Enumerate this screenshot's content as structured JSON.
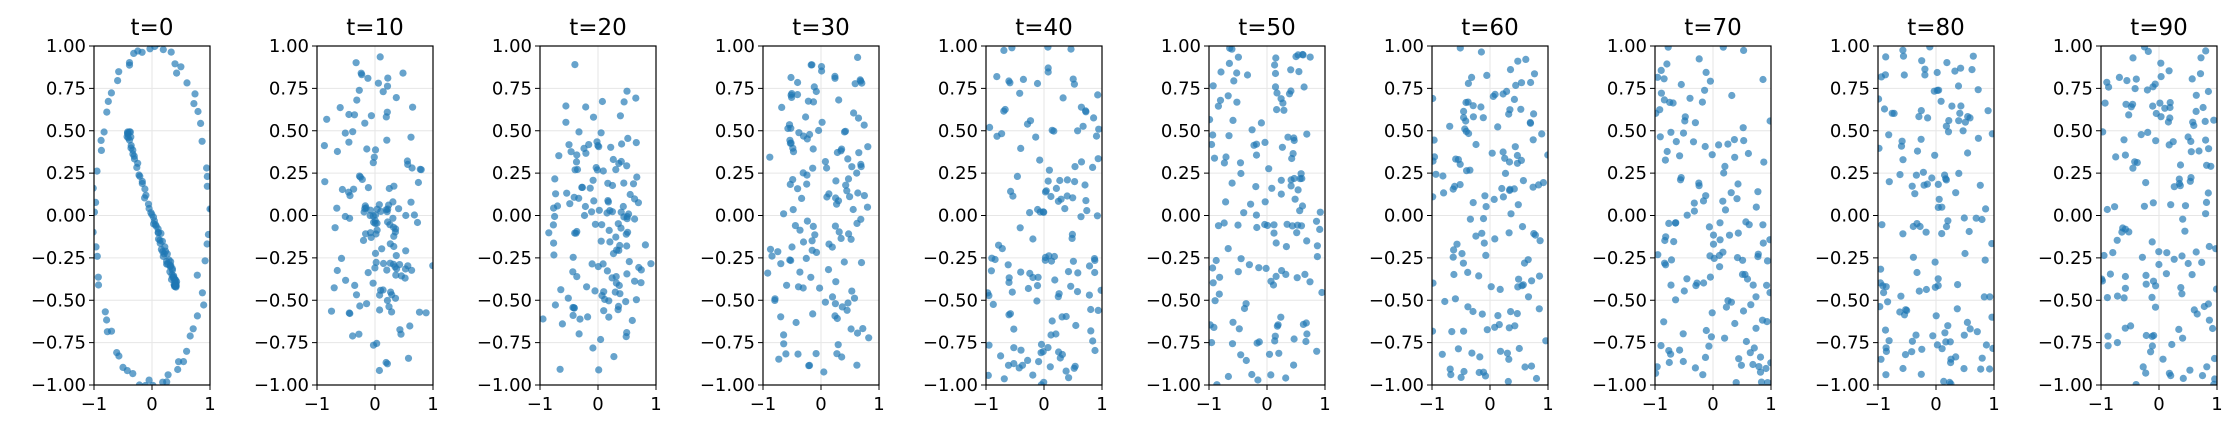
{
  "chart_data": [
    {
      "type": "scatter",
      "title": "t=0",
      "xlim": [
        -1,
        1
      ],
      "ylim": [
        -1,
        1
      ],
      "xticks": [
        -1,
        0,
        1
      ],
      "yticks": [
        -1.0,
        -0.75,
        -0.5,
        -0.25,
        0.0,
        0.25,
        0.5,
        0.75,
        1.0
      ],
      "grid": true,
      "color": "#1f77b4",
      "point_counts": {
        "inner_spiral": 80,
        "outer_ring": 70
      }
    },
    {
      "type": "scatter",
      "title": "t=10",
      "xlim": [
        -1,
        1
      ],
      "ylim": [
        -1,
        1
      ],
      "xticks": [
        -1,
        0,
        1
      ],
      "yticks": [
        -1.0,
        -0.75,
        -0.5,
        -0.25,
        0.0,
        0.25,
        0.5,
        0.75,
        1.0
      ],
      "grid": true,
      "color": "#1f77b4"
    },
    {
      "type": "scatter",
      "title": "t=20",
      "xlim": [
        -1,
        1
      ],
      "ylim": [
        -1,
        1
      ],
      "xticks": [
        -1,
        0,
        1
      ],
      "yticks": [
        -1.0,
        -0.75,
        -0.5,
        -0.25,
        0.0,
        0.25,
        0.5,
        0.75,
        1.0
      ],
      "grid": true,
      "color": "#1f77b4"
    },
    {
      "type": "scatter",
      "title": "t=30",
      "xlim": [
        -1,
        1
      ],
      "ylim": [
        -1,
        1
      ],
      "xticks": [
        -1,
        0,
        1
      ],
      "yticks": [
        -1.0,
        -0.75,
        -0.5,
        -0.25,
        0.0,
        0.25,
        0.5,
        0.75,
        1.0
      ],
      "grid": true,
      "color": "#1f77b4"
    },
    {
      "type": "scatter",
      "title": "t=40",
      "xlim": [
        -1,
        1
      ],
      "ylim": [
        -1,
        1
      ],
      "xticks": [
        -1,
        0,
        1
      ],
      "yticks": [
        -1.0,
        -0.75,
        -0.5,
        -0.25,
        0.0,
        0.25,
        0.5,
        0.75,
        1.0
      ],
      "grid": true,
      "color": "#1f77b4"
    },
    {
      "type": "scatter",
      "title": "t=50",
      "xlim": [
        -1,
        1
      ],
      "ylim": [
        -1,
        1
      ],
      "xticks": [
        -1,
        0,
        1
      ],
      "yticks": [
        -1.0,
        -0.75,
        -0.5,
        -0.25,
        0.0,
        0.25,
        0.5,
        0.75,
        1.0
      ],
      "grid": true,
      "color": "#1f77b4"
    },
    {
      "type": "scatter",
      "title": "t=60",
      "xlim": [
        -1,
        1
      ],
      "ylim": [
        -1,
        1
      ],
      "xticks": [
        -1,
        0,
        1
      ],
      "yticks": [
        -1.0,
        -0.75,
        -0.5,
        -0.25,
        0.0,
        0.25,
        0.5,
        0.75,
        1.0
      ],
      "grid": true,
      "color": "#1f77b4"
    },
    {
      "type": "scatter",
      "title": "t=70",
      "xlim": [
        -1,
        1
      ],
      "ylim": [
        -1,
        1
      ],
      "xticks": [
        -1,
        0,
        1
      ],
      "yticks": [
        -1.0,
        -0.75,
        -0.5,
        -0.25,
        0.0,
        0.25,
        0.5,
        0.75,
        1.0
      ],
      "grid": true,
      "color": "#1f77b4"
    },
    {
      "type": "scatter",
      "title": "t=80",
      "xlim": [
        -1,
        1
      ],
      "ylim": [
        -1,
        1
      ],
      "xticks": [
        -1,
        0,
        1
      ],
      "yticks": [
        -1.0,
        -0.75,
        -0.5,
        -0.25,
        0.0,
        0.25,
        0.5,
        0.75,
        1.0
      ],
      "grid": true,
      "color": "#1f77b4"
    },
    {
      "type": "scatter",
      "title": "t=90",
      "xlim": [
        -1,
        1
      ],
      "ylim": [
        -1,
        1
      ],
      "xticks": [
        -1,
        0,
        1
      ],
      "yticks": [
        -1.0,
        -0.75,
        -0.5,
        -0.25,
        0.0,
        0.25,
        0.5,
        0.75,
        1.0
      ],
      "grid": true,
      "color": "#1f77b4"
    }
  ]
}
